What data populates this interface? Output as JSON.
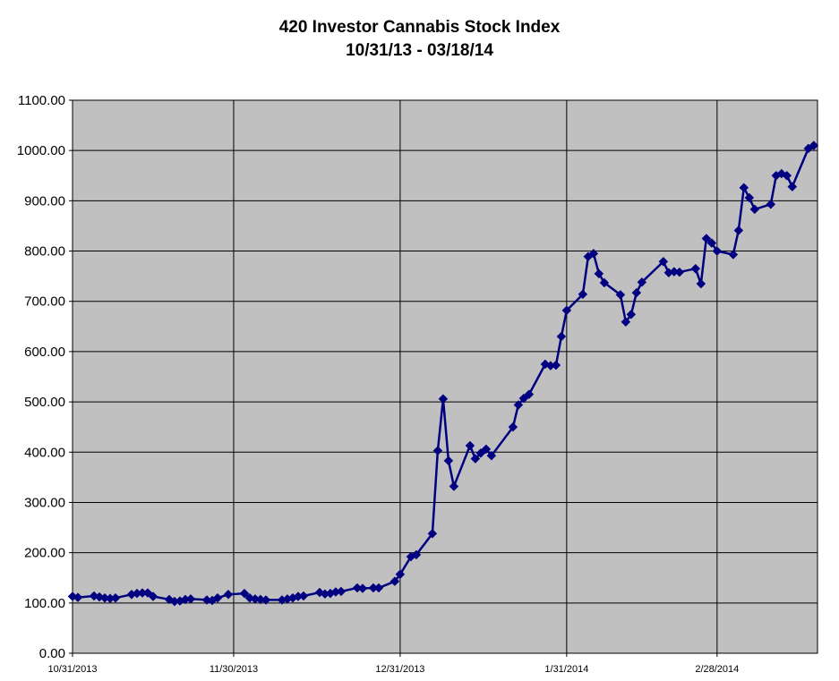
{
  "chart_data": {
    "type": "line",
    "title": "420 Investor Cannabis Stock Index",
    "subtitle": "10/31/13 - 03/18/14",
    "xlabel": "",
    "ylabel": "",
    "ylim": [
      0,
      1100
    ],
    "y_ticks": [
      "0.00",
      "100.00",
      "200.00",
      "300.00",
      "400.00",
      "500.00",
      "600.00",
      "700.00",
      "800.00",
      "900.00",
      "1000.00",
      "1100.00"
    ],
    "x_ticks": [
      "10/31/2013",
      "11/30/2013",
      "12/31/2013",
      "1/31/2014",
      "2/28/2014"
    ],
    "x_tick_dates": [
      "2013-10-31",
      "2013-11-30",
      "2013-12-31",
      "2014-01-31",
      "2014-02-28"
    ],
    "grid": true,
    "line_color": "#000080",
    "plot_background": "#c0c0c0",
    "series": [
      {
        "x": [
          "2013-10-31",
          "2013-11-01",
          "2013-11-04",
          "2013-11-05",
          "2013-11-06",
          "2013-11-07",
          "2013-11-08",
          "2013-11-11",
          "2013-11-12",
          "2013-11-13",
          "2013-11-14",
          "2013-11-15",
          "2013-11-18",
          "2013-11-19",
          "2013-11-20",
          "2013-11-21",
          "2013-11-22",
          "2013-11-25",
          "2013-11-26",
          "2013-11-27",
          "2013-11-29",
          "2013-12-02",
          "2013-12-03",
          "2013-12-04",
          "2013-12-05",
          "2013-12-06",
          "2013-12-09",
          "2013-12-10",
          "2013-12-11",
          "2013-12-12",
          "2013-12-13",
          "2013-12-16",
          "2013-12-17",
          "2013-12-18",
          "2013-12-19",
          "2013-12-20",
          "2013-12-23",
          "2013-12-24",
          "2013-12-26",
          "2013-12-27",
          "2013-12-30",
          "2013-12-31",
          "2014-01-02",
          "2014-01-03",
          "2014-01-06",
          "2014-01-07",
          "2014-01-08",
          "2014-01-09",
          "2014-01-10",
          "2014-01-13",
          "2014-01-14",
          "2014-01-15",
          "2014-01-16",
          "2014-01-17",
          "2014-01-21",
          "2014-01-22",
          "2014-01-23",
          "2014-01-24",
          "2014-01-27",
          "2014-01-28",
          "2014-01-29",
          "2014-01-30",
          "2014-01-31",
          "2014-02-03",
          "2014-02-04",
          "2014-02-05",
          "2014-02-06",
          "2014-02-07",
          "2014-02-10",
          "2014-02-11",
          "2014-02-12",
          "2014-02-13",
          "2014-02-14",
          "2014-02-18",
          "2014-02-19",
          "2014-02-20",
          "2014-02-21",
          "2014-02-24",
          "2014-02-25",
          "2014-02-26",
          "2014-02-27",
          "2014-02-28",
          "2014-03-03",
          "2014-03-04",
          "2014-03-05",
          "2014-03-06",
          "2014-03-07",
          "2014-03-10",
          "2014-03-11",
          "2014-03-12",
          "2014-03-13",
          "2014-03-14",
          "2014-03-17",
          "2014-03-18"
        ],
        "values": [
          113,
          111,
          114,
          112,
          110,
          109,
          110,
          117,
          119,
          120,
          120,
          113,
          107,
          103,
          104,
          107,
          108,
          106,
          105,
          110,
          117,
          119,
          110,
          108,
          107,
          106,
          106,
          108,
          110,
          113,
          114,
          121,
          118,
          119,
          122,
          123,
          130,
          129,
          130,
          130,
          143,
          157,
          192,
          196,
          238,
          403,
          506,
          383,
          332,
          413,
          387,
          398,
          406,
          393,
          450,
          494,
          507,
          515,
          575,
          572,
          573,
          630,
          682,
          714,
          789,
          795,
          755,
          737,
          713,
          659,
          674,
          717,
          738,
          779,
          757,
          759,
          758,
          765,
          735,
          825,
          816,
          800,
          793,
          841,
          926,
          906,
          883,
          893,
          950,
          954,
          950,
          928,
          1004,
          1010
        ]
      }
    ]
  }
}
